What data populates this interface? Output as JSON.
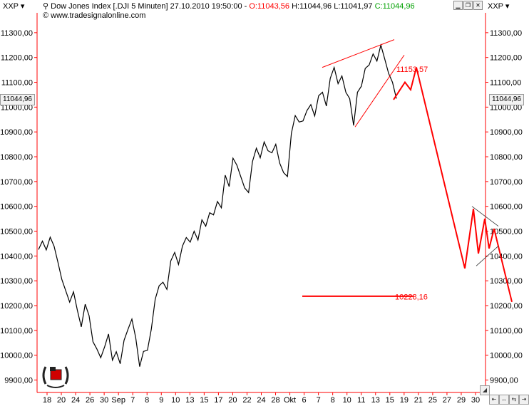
{
  "header": {
    "symbol_left": "XXP",
    "title": "Dow Jones Index [.DJI  5 Minuten] 27.10.2010 19:50:00 - ",
    "open": "O:11043,56",
    "high": "H:11044,96",
    "low": "L:11041,97",
    "close": "C:11044,96",
    "website": "© www.tradesignalonline.com",
    "symbol_right": "XXP"
  },
  "current_price_label": "11044,96",
  "colors": {
    "axis": "#ff0000",
    "price": "#000000",
    "annotation": "#ff0000",
    "open": "#ff0000",
    "close": "#00a000"
  },
  "chart_data": {
    "type": "line",
    "ylim": [
      9850,
      11380
    ],
    "y_ticks": [
      "9900,00",
      "10000,00",
      "10100,00",
      "10200,00",
      "10300,00",
      "10400,00",
      "10500,00",
      "10600,00",
      "10700,00",
      "10800,00",
      "10900,00",
      "11000,00",
      "11100,00",
      "11200,00",
      "11300,00"
    ],
    "x_tick_labels": [
      "18",
      "20",
      "24",
      "26",
      "30",
      "Sep",
      "7",
      "8",
      "9",
      "10",
      "13",
      "15",
      "17",
      "20",
      "22",
      "24",
      "28",
      "Okt",
      "6",
      "7",
      "8",
      "10",
      "11",
      "13",
      "15",
      "19",
      "21",
      "25",
      "27",
      "29",
      "30"
    ],
    "series": [
      {
        "values": [
          10420,
          10460,
          10430,
          10470,
          10440,
          10380,
          10300,
          10260,
          10220,
          10250,
          10180,
          10120,
          10200,
          10160,
          10060,
          10020,
          9990,
          10040,
          10080,
          9980,
          10020,
          9960,
          10060,
          10110,
          10140,
          10070,
          9960,
          10010,
          10020,
          10110,
          10220,
          10280,
          10300,
          10260,
          10380,
          10420,
          10360,
          10440,
          10480,
          10450,
          10500,
          10470,
          10540,
          10520,
          10580,
          10560,
          10620,
          10600,
          10720,
          10680,
          10800,
          10760,
          10720,
          10680,
          10650,
          10780,
          10840,
          10790,
          10860,
          10830,
          10810,
          10850,
          10780,
          10730,
          10720,
          10900,
          10960,
          10940,
          10950,
          10980,
          11010,
          10970,
          11040,
          11060,
          11010,
          11110,
          11160,
          11100,
          11120,
          11060,
          11040,
          10920,
          11060,
          11090,
          11150,
          11170,
          11220,
          11180,
          11250,
          11200,
          11130,
          11100,
          11040
        ]
      }
    ],
    "annotations": [
      {
        "label": "11153,57",
        "value": 11153.57
      },
      {
        "label": "10228,16",
        "value": 10228.16
      }
    ]
  }
}
